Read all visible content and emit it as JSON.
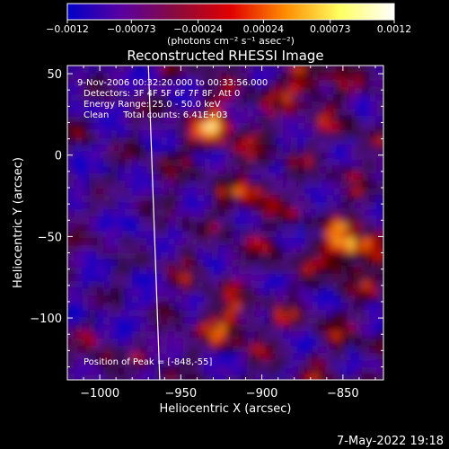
{
  "chart_data": {
    "type": "heatmap",
    "title": "Reconstructed RHESSI Image",
    "xlabel": "Heliocentric X (arcsec)",
    "ylabel": "Heliocentric Y (arcsec)",
    "xlim": [
      -1020,
      -825
    ],
    "ylim": [
      -138,
      55
    ],
    "x_ticks": [
      -1000,
      -950,
      -900,
      -850
    ],
    "x_tick_labels": [
      "−1000",
      "−950",
      "−900",
      "−850"
    ],
    "y_ticks": [
      50,
      0,
      -50,
      -100
    ],
    "y_tick_labels": [
      "50",
      "0",
      "−50",
      "−100"
    ],
    "colorbar": {
      "range": [
        -0.0012,
        0.0012
      ],
      "ticks": [
        -0.0012,
        -0.00073,
        -0.00024,
        0.00024,
        0.00073,
        0.0012
      ],
      "tick_labels": [
        "−0.0012",
        "−0.00073",
        "−0.00024",
        "0.00024",
        "0.00073",
        "0.0012"
      ],
      "units_label": "(photons cm⁻² s⁻¹ asec⁻²)",
      "colors": [
        "#0000c8",
        "#5a00a0",
        "#8a0a3c",
        "#e00000",
        "#ff8c00",
        "#ffff60",
        "#ffffff"
      ]
    },
    "annotations": {
      "time_range": "9-Nov-2006 00:32:20.000 to 00:33:56.000",
      "detectors": "Detectors: 3F 4F 5F 6F 7F 8F, Att 0",
      "energy": "Energy Range: 25.0 - 50.0 keV",
      "clean": "Clean     Total counts: 6.41E+03",
      "peak": "Position of Peak = [-848,-55]"
    },
    "peak": [
      -848,
      -55
    ],
    "limb_line_x": [
      -970,
      -963
    ]
  },
  "footer": {
    "timestamp": "7-May-2022 19:18"
  }
}
